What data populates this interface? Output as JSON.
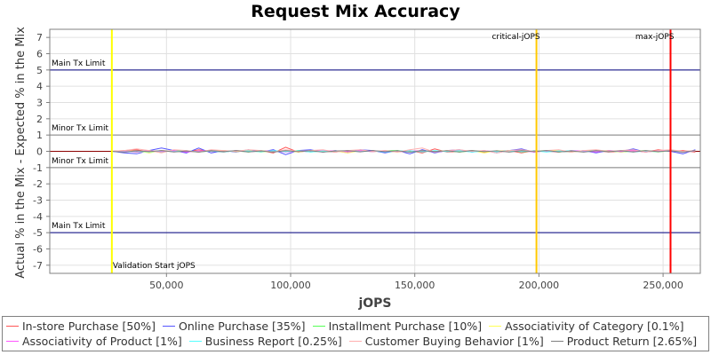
{
  "chart_data": {
    "type": "line",
    "title": "Request Mix Accuracy",
    "xlabel": "jOPS",
    "ylabel": "Actual % in the Mix - Expected % in the Mix",
    "xlim": [
      3000,
      265000
    ],
    "ylim": [
      -7.5,
      7.5
    ],
    "x_ticks": [
      50000,
      100000,
      150000,
      200000,
      250000
    ],
    "x_tick_labels": [
      "50,000",
      "100,000",
      "150,000",
      "200,000",
      "250,000"
    ],
    "y_ticks": [
      -7,
      -6,
      -5,
      -4,
      -3,
      -2,
      -1,
      0,
      1,
      2,
      3,
      4,
      5,
      6,
      7
    ],
    "grid": true,
    "legend_position": "bottom",
    "horizontal_markers": [
      {
        "label": "Main Tx Limit",
        "y": 5
      },
      {
        "label": "Minor Tx Limit",
        "y": 1
      },
      {
        "label": "Minor Tx Limit",
        "y": -1
      },
      {
        "label": "Main Tx Limit",
        "y": -5
      }
    ],
    "vertical_markers": [
      {
        "label": "Validation Start jOPS",
        "x": 28000,
        "color": "#ffff00"
      },
      {
        "label": "critical-jOPS",
        "x": 199000,
        "color": "#ffc800"
      },
      {
        "label": "max-jOPS",
        "x": 253000,
        "color": "#ff0000"
      }
    ],
    "x": [
      28000,
      33000,
      38000,
      43000,
      48000,
      53000,
      58000,
      63000,
      68000,
      73000,
      78000,
      83000,
      88000,
      93000,
      98000,
      103000,
      108000,
      113000,
      118000,
      123000,
      128000,
      133000,
      138000,
      143000,
      148000,
      153000,
      158000,
      163000,
      168000,
      173000,
      178000,
      183000,
      188000,
      193000,
      198000,
      203000,
      208000,
      213000,
      218000,
      223000,
      228000,
      233000,
      238000,
      243000,
      248000,
      253000,
      258000,
      263000
    ],
    "series": [
      {
        "name": "In-store Purchase [50%]",
        "color": "#ff5555",
        "values": [
          0.0,
          0.05,
          0.1,
          -0.05,
          0.05,
          0.0,
          -0.05,
          0.1,
          0.0,
          -0.05,
          0.05,
          0.0,
          0.05,
          -0.1,
          0.25,
          -0.05,
          0.05,
          0.0,
          -0.05,
          0.05,
          0.0,
          0.05,
          -0.05,
          0.0,
          0.05,
          -0.1,
          0.15,
          -0.05,
          0.0,
          0.05,
          -0.05,
          0.0,
          0.05,
          -0.1,
          0.05,
          0.0,
          -0.05,
          0.05,
          0.0,
          0.05,
          -0.05,
          0.0,
          0.05,
          -0.05,
          0.1,
          0.0,
          0.05,
          -0.05
        ]
      },
      {
        "name": "Online Purchase [35%]",
        "color": "#5555ff",
        "values": [
          0.0,
          -0.1,
          -0.15,
          0.05,
          0.2,
          0.05,
          -0.1,
          0.2,
          -0.1,
          0.05,
          -0.05,
          0.1,
          -0.05,
          0.1,
          -0.2,
          0.05,
          0.1,
          -0.05,
          0.05,
          -0.1,
          0.1,
          0.05,
          -0.1,
          0.05,
          -0.15,
          0.1,
          -0.1,
          0.05,
          0.1,
          -0.05,
          0.05,
          -0.1,
          0.05,
          0.15,
          -0.05,
          0.05,
          0.0,
          -0.05,
          0.05,
          -0.1,
          0.05,
          0.0,
          0.15,
          -0.05,
          0.05,
          0.0,
          -0.15,
          0.1
        ]
      },
      {
        "name": "Installment Purchase [10%]",
        "color": "#55ff55",
        "values": [
          0.0,
          0.03,
          -0.05,
          0.05,
          -0.03,
          0.04,
          0.02,
          -0.04,
          0.05,
          -0.02,
          0.03,
          -0.05,
          0.04,
          0.02,
          -0.03,
          0.05,
          -0.04,
          0.02,
          0.03,
          -0.05,
          0.04,
          -0.02,
          0.03,
          0.05,
          -0.04,
          0.02,
          -0.03,
          0.04,
          -0.05,
          0.03,
          0.02,
          -0.04,
          0.05,
          -0.03,
          0.02,
          0.04,
          -0.05,
          0.03,
          -0.02,
          0.04,
          0.03,
          -0.05,
          0.02,
          0.04,
          -0.03,
          0.05,
          -0.02,
          0.03
        ]
      },
      {
        "name": "Associativity of Category [0.1%]",
        "color": "#ffff55",
        "values": [
          0.0,
          -0.02,
          0.03,
          -0.1,
          0.05,
          -0.03,
          0.02,
          -0.05,
          0.03,
          0.05,
          -0.02,
          0.04,
          -0.05,
          0.02,
          0.03,
          -0.04,
          0.05,
          -0.03,
          0.02,
          -0.1,
          0.04,
          -0.02,
          0.03,
          -0.05,
          0.02,
          0.04,
          -0.03,
          0.05,
          -0.02,
          0.03,
          -0.1,
          0.04,
          -0.02,
          0.05,
          -0.03,
          0.02,
          0.04,
          -0.05,
          0.03,
          -0.02,
          0.05,
          -0.04,
          0.03,
          0.02,
          -0.05,
          0.04,
          -0.03,
          0.02
        ]
      },
      {
        "name": "Associativity of Product [1%]",
        "color": "#ff55ff",
        "values": [
          0.0,
          0.02,
          -0.03,
          0.04,
          -0.02,
          0.03,
          -0.04,
          0.02,
          0.03,
          -0.02,
          0.04,
          -0.03,
          0.02,
          0.03,
          -0.04,
          0.02,
          -0.03,
          0.04,
          0.02,
          -0.03,
          0.03,
          -0.02,
          0.04,
          -0.03,
          0.02,
          0.03,
          -0.04,
          0.02,
          0.03,
          -0.02,
          0.04,
          -0.03,
          0.02,
          0.03,
          -0.04,
          0.02,
          -0.03,
          0.04,
          0.02,
          -0.03,
          0.03,
          -0.02,
          0.04,
          -0.03,
          0.02,
          0.03,
          -0.04,
          0.02
        ]
      },
      {
        "name": "Business Report [0.25%]",
        "color": "#55ffff",
        "values": [
          0.0,
          -0.03,
          0.02,
          -0.04,
          0.03,
          -0.02,
          0.04,
          -0.03,
          0.02,
          -0.04,
          0.03,
          0.02,
          -0.03,
          0.04,
          -0.02,
          0.03,
          -0.04,
          0.02,
          -0.03,
          0.04,
          -0.02,
          0.03,
          -0.04,
          0.02,
          0.03,
          -0.03,
          0.04,
          -0.02,
          0.03,
          -0.04,
          0.02,
          -0.03,
          0.04,
          -0.02,
          0.03,
          -0.04,
          0.02,
          0.03,
          -0.03,
          0.04,
          -0.02,
          0.03,
          -0.04,
          0.02,
          -0.03,
          0.04,
          -0.02,
          0.03
        ]
      },
      {
        "name": "Customer Buying Behavior [1%]",
        "color": "#ffafaf",
        "values": [
          0.0,
          0.05,
          0.15,
          0.05,
          -0.1,
          0.1,
          0.05,
          -0.05,
          0.1,
          0.05,
          0.0,
          0.1,
          0.05,
          -0.05,
          0.1,
          0.0,
          0.05,
          0.1,
          -0.05,
          0.05,
          0.1,
          0.0,
          0.05,
          -0.05,
          0.1,
          0.2,
          -0.05,
          0.05,
          0.1,
          0.0,
          0.05,
          -0.1,
          0.05,
          0.1,
          0.0,
          0.05,
          0.1,
          -0.05,
          0.05,
          0.1,
          0.0,
          0.05,
          0.1,
          -0.05,
          0.05,
          0.1,
          0.0,
          0.05
        ]
      },
      {
        "name": "Product Return [2.65%]",
        "color": "#808080",
        "values": [
          0.0,
          -0.05,
          0.03,
          -0.02,
          0.05,
          -0.04,
          0.02,
          -0.05,
          0.04,
          -0.02,
          0.05,
          -0.03,
          0.02,
          -0.05,
          0.04,
          -0.02,
          0.03,
          -0.05,
          0.02,
          0.04,
          -0.03,
          0.05,
          -0.02,
          0.03,
          -0.05,
          0.04,
          -0.02,
          0.03,
          -0.04,
          0.05,
          -0.02,
          0.03,
          -0.05,
          0.04,
          -0.02,
          0.05,
          -0.03,
          0.02,
          -0.05,
          0.04,
          -0.02,
          0.03,
          -0.04,
          0.05,
          -0.02,
          0.03,
          -0.05,
          0.04
        ]
      }
    ]
  }
}
